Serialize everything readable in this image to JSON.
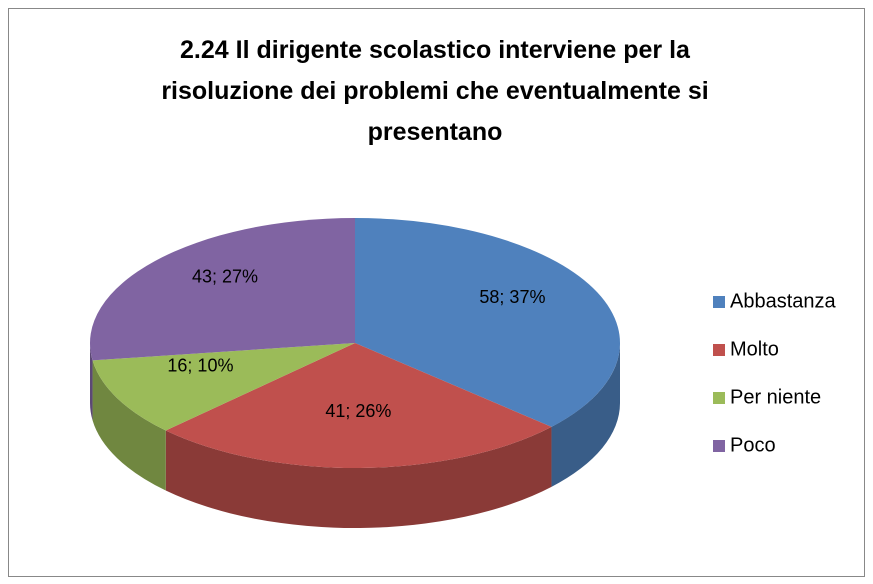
{
  "chart_data": {
    "type": "pie",
    "title": "2.24 Il dirigente scolastico interviene per la risoluzione dei problemi che eventualmente si presentano",
    "categories": [
      "Abbastanza",
      "Molto",
      "Per niente",
      "Poco"
    ],
    "values": [
      58,
      41,
      16,
      43
    ],
    "value_labels": [
      "58; 37%",
      "41; 26%",
      "16; 10%",
      "43; 27%"
    ],
    "colors": [
      "#4f81bd",
      "#c0504d",
      "#9bbb59",
      "#8064a2"
    ],
    "legend": "right"
  }
}
